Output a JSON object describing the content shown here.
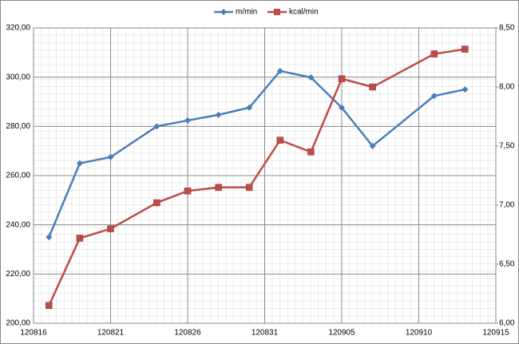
{
  "chart_data": {
    "type": "line",
    "x": [
      "120817",
      "120819",
      "120821",
      "120824",
      "120826",
      "120828",
      "120830",
      "120901",
      "120903",
      "120905",
      "120907",
      "120911",
      "120913"
    ],
    "series": [
      {
        "name": "m/min",
        "color": "#4a7ebb",
        "values": [
          235,
          265,
          267.5,
          280,
          282.4,
          284.7,
          287.6,
          302.5,
          299.9,
          287.6,
          272,
          292.4,
          295
        ]
      },
      {
        "name": "kcal/min",
        "color": "#be4b48",
        "axis": "y2",
        "values": [
          6.15,
          6.72,
          6.8,
          7.02,
          7.12,
          7.15,
          7.15,
          7.55,
          7.45,
          8.07,
          8.0,
          8.28,
          8.32
        ]
      }
    ],
    "xlim": [
      "120816",
      "120915"
    ],
    "xticks": [
      "120816",
      "120821",
      "120826",
      "120831",
      "120905",
      "120910",
      "120915"
    ],
    "ylim": [
      200,
      320
    ],
    "yticks": [
      {
        "value": 200,
        "label": "200,00"
      },
      {
        "value": 220,
        "label": "220,00"
      },
      {
        "value": 240,
        "label": "240,00"
      },
      {
        "value": 260,
        "label": "260,00"
      },
      {
        "value": 280,
        "label": "280,00"
      },
      {
        "value": 300,
        "label": "300,00"
      },
      {
        "value": 320,
        "label": "320,00"
      }
    ],
    "y2lim": [
      6,
      8.5
    ],
    "y2ticks": [
      {
        "value": 6,
        "label": "6,00"
      },
      {
        "value": 6.5,
        "label": "6,50"
      },
      {
        "value": 7,
        "label": "7,00"
      },
      {
        "value": 7.5,
        "label": "7,50"
      },
      {
        "value": 8,
        "label": "8,00"
      },
      {
        "value": 8.5,
        "label": "8,50"
      }
    ],
    "grid": true,
    "legend": "top"
  }
}
